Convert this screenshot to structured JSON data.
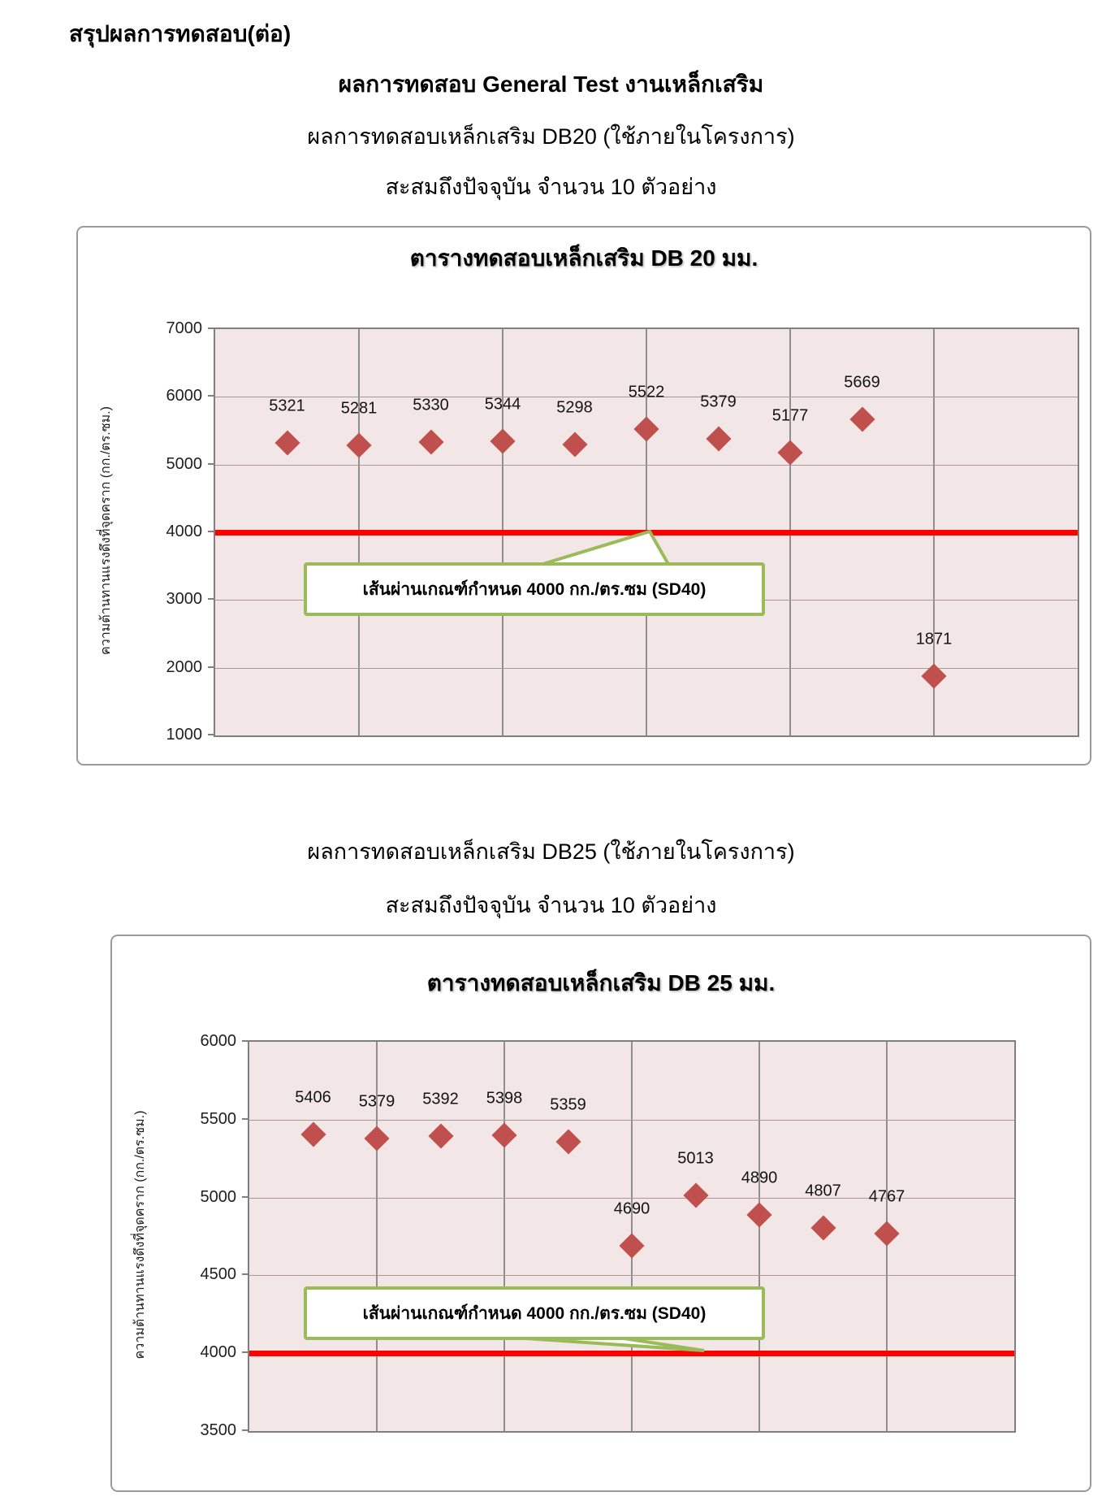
{
  "page": {
    "heading": "สรุปผลการทดสอบ(ต่อ)",
    "title": "ผลการทดสอบ General Test งานเหล็กเสริม",
    "sections": [
      {
        "subtitle1": "ผลการทดสอบเหล็กเสริม DB20 (ใช้ภายในโครงการ)",
        "subtitle2": "สะสมถึงปัจจุบัน จำนวน 10 ตัวอย่าง"
      },
      {
        "subtitle1": "ผลการทดสอบเหล็กเสริม DB25 (ใช้ภายในโครงการ)",
        "subtitle2": "สะสมถึงปัจจุบัน จำนวน 10 ตัวอย่าง"
      }
    ]
  },
  "chart_data": [
    {
      "type": "scatter",
      "title": "ตารางทดสอบเหล็กเสริม DB 20 มม.",
      "ylabel": "ความต้านทานแรงดึงที่จุดคราก  (กก./ตร.ซม.)",
      "xlabel": "",
      "categories": [
        1,
        2,
        3,
        4,
        5,
        6,
        7,
        8,
        9,
        10
      ],
      "values": [
        5321,
        5281,
        5330,
        5344,
        5298,
        5522,
        5379,
        5177,
        5669,
        1871
      ],
      "ylim": [
        1000,
        7000
      ],
      "yticks": [
        7000,
        6000,
        5000,
        4000,
        3000,
        2000,
        1000
      ],
      "grid": true,
      "legend_position": "none",
      "marker": {
        "shape": "diamond",
        "color": "#c0504d"
      },
      "plot_bg": "#f2e6e6",
      "ref_line": {
        "value": 4000,
        "color": "#fe0000",
        "label": "เส้นผ่านเกณฑ์กำหนด 4000 กก./ตร.ซม (SD40)",
        "callout_border": "#9bbb59"
      }
    },
    {
      "type": "scatter",
      "title": "ตารางทดสอบเหล็กเสริม DB 25 มม.",
      "ylabel": "ความต้านทานแรงดึงที่จุดคราก  (กก./ตร.ซม.)",
      "xlabel": "",
      "categories": [
        1,
        2,
        3,
        4,
        5,
        6,
        7,
        8,
        9,
        10
      ],
      "values": [
        5406,
        5379,
        5392,
        5398,
        5359,
        4690,
        5013,
        4890,
        4807,
        4767
      ],
      "ylim": [
        3500,
        6000
      ],
      "yticks": [
        6000,
        5500,
        5000,
        4500,
        4000,
        3500
      ],
      "grid": true,
      "legend_position": "none",
      "marker": {
        "shape": "diamond",
        "color": "#c0504d"
      },
      "plot_bg": "#f2e6e6",
      "ref_line": {
        "value": 4000,
        "color": "#fe0000",
        "label": "เส้นผ่านเกณฑ์กำหนด 4000 กก./ตร.ซม (SD40)",
        "callout_border": "#9bbb59"
      }
    }
  ]
}
